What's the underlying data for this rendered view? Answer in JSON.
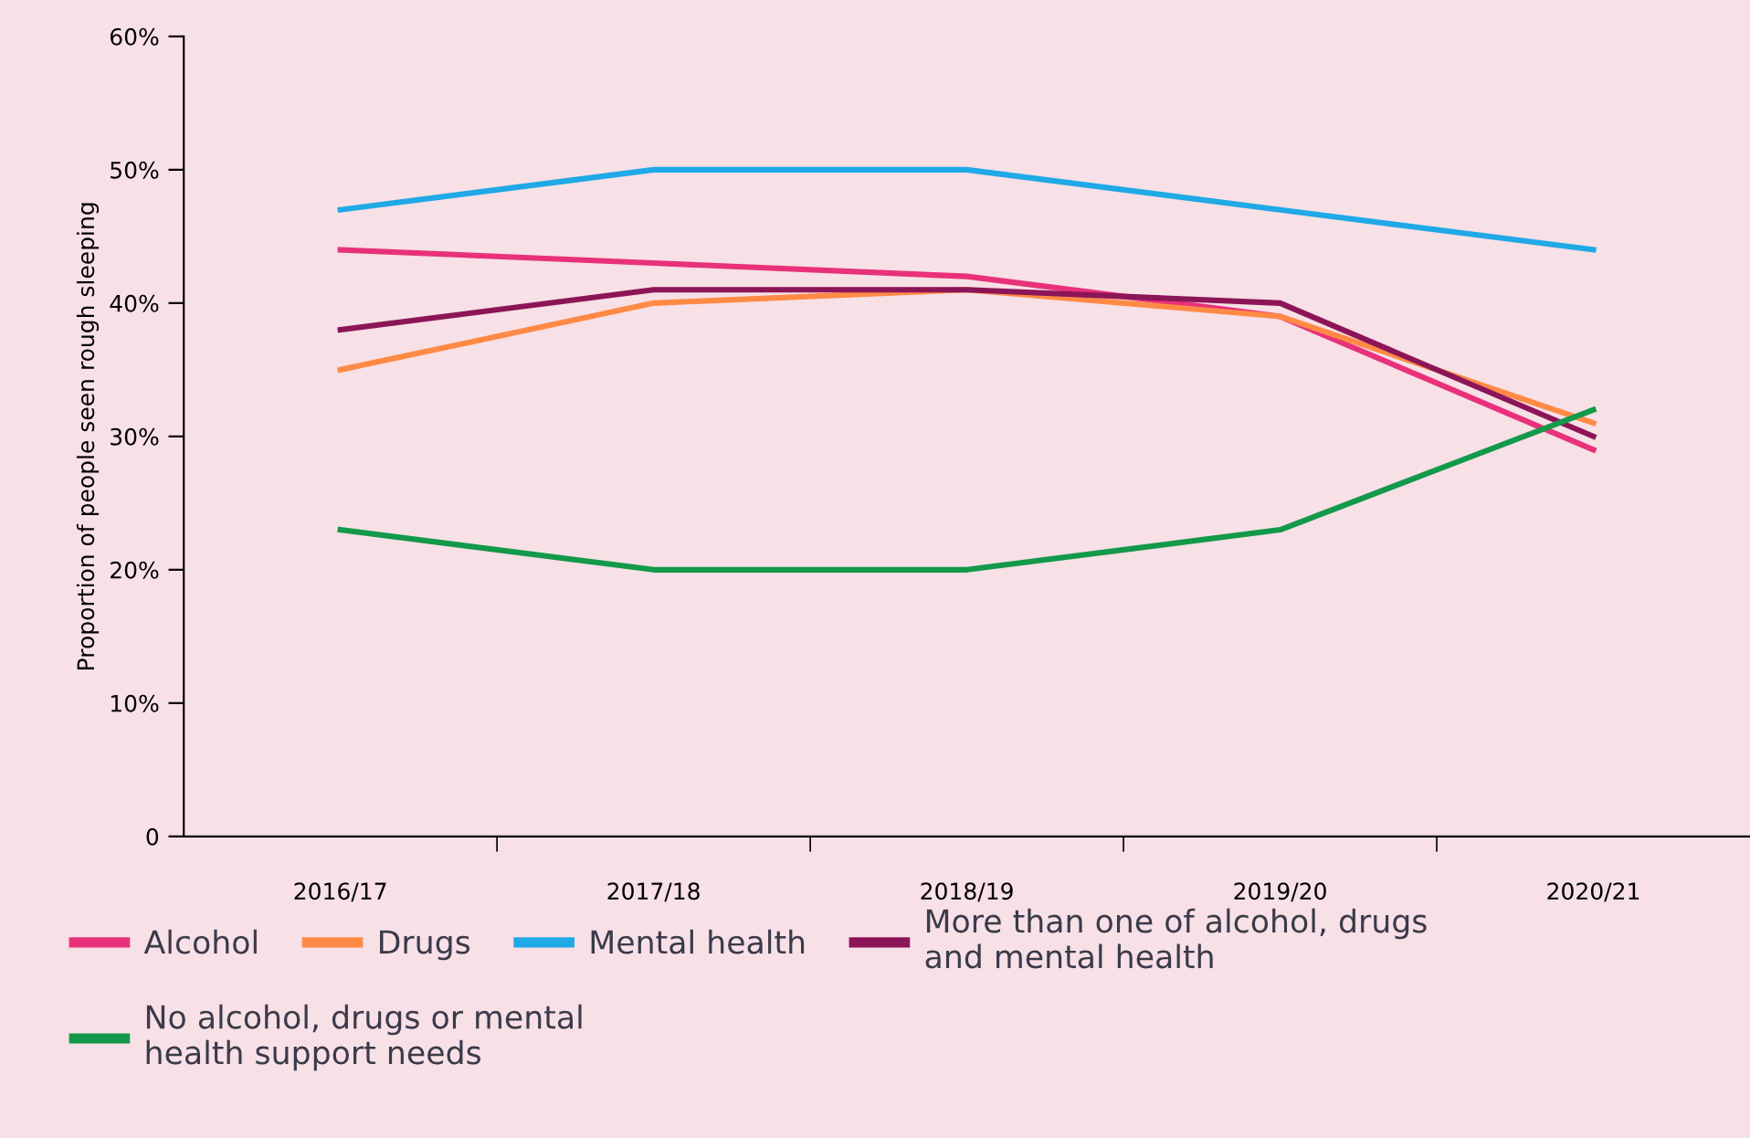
{
  "chart_data": {
    "type": "line",
    "ylabel": "Proportion of people seen rough sleeping",
    "categories": [
      "2016/17",
      "2017/18",
      "2018/19",
      "2019/20",
      "2020/21"
    ],
    "series": [
      {
        "name": "Alcohol",
        "color": "#e8317a",
        "values": [
          44,
          43,
          42,
          39,
          29
        ]
      },
      {
        "name": "Drugs",
        "color": "#ff8a45",
        "values": [
          35,
          40,
          41,
          39,
          31
        ]
      },
      {
        "name": "Mental health",
        "color": "#1fa9e6",
        "values": [
          47,
          50,
          50,
          47,
          44
        ]
      },
      {
        "name": "More than one of alcohol, drugs and mental health",
        "color": "#8c1558",
        "values": [
          38,
          41,
          41,
          40,
          30
        ]
      },
      {
        "name": "No alcohol, drugs or mental health support needs",
        "color": "#13994a",
        "values": [
          23,
          20,
          20,
          23,
          32
        ]
      }
    ],
    "ylim": [
      0,
      60
    ],
    "yticks": [
      0,
      {
        "value": 10,
        "label": "10%"
      },
      {
        "value": 20,
        "label": "20%"
      },
      {
        "value": 30,
        "label": "30%"
      },
      {
        "value": 40,
        "label": "40%"
      },
      {
        "value": 50,
        "label": "50%"
      },
      {
        "value": 60,
        "label": "60%"
      }
    ],
    "grid": false,
    "legend": "bottom",
    "marker": "none",
    "line_style": "solid"
  }
}
